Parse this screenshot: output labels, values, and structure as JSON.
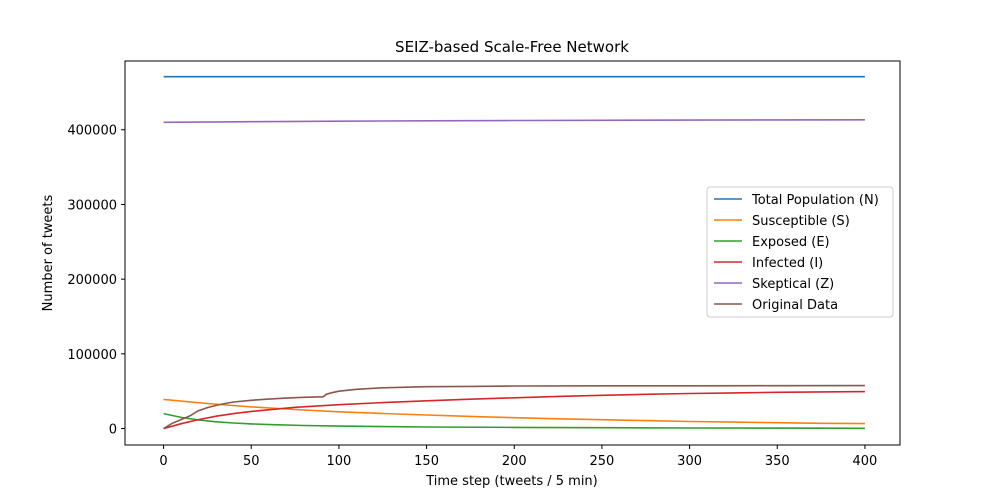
{
  "chart_data": {
    "type": "line",
    "title": "SEIZ-based Scale-Free Network",
    "xlabel": "Time step (tweets / 5 min)",
    "ylabel": "Number of tweets",
    "xlim": [
      -22,
      420
    ],
    "ylim": [
      -22000,
      492000
    ],
    "xticks": [
      0,
      50,
      100,
      150,
      200,
      250,
      300,
      350,
      400
    ],
    "xtick_labels": [
      "0",
      "50",
      "100",
      "150",
      "200",
      "250",
      "300",
      "350",
      "400"
    ],
    "yticks": [
      0,
      100000,
      200000,
      300000,
      400000
    ],
    "ytick_labels": [
      "0",
      "100000",
      "200000",
      "300000",
      "400000"
    ],
    "grid": false,
    "legend_position": "center-right",
    "series": [
      {
        "name": "Total Population (N)",
        "color": "#1f77b4",
        "x": [
          0,
          400
        ],
        "y": [
          471000,
          471000
        ]
      },
      {
        "name": "Susceptible (S)",
        "color": "#ff7f0e",
        "x": [
          0,
          25,
          50,
          75,
          100,
          125,
          150,
          175,
          200,
          225,
          250,
          275,
          300,
          325,
          350,
          375,
          400
        ],
        "y": [
          39000,
          33500,
          29000,
          25500,
          22500,
          20200,
          18200,
          16300,
          14600,
          13100,
          11800,
          10600,
          9500,
          8600,
          7800,
          7100,
          6600
        ]
      },
      {
        "name": "Exposed (E)",
        "color": "#2ca02c",
        "x": [
          0,
          10,
          20,
          30,
          40,
          50,
          60,
          80,
          100,
          125,
          150,
          200,
          250,
          300,
          350,
          400
        ],
        "y": [
          20000,
          15000,
          11500,
          9000,
          7400,
          6200,
          5300,
          4100,
          3300,
          2600,
          2100,
          1500,
          1100,
          800,
          600,
          400
        ]
      },
      {
        "name": "Infected (I)",
        "color": "#d62728",
        "x": [
          0,
          10,
          20,
          30,
          40,
          50,
          75,
          100,
          125,
          150,
          175,
          200,
          225,
          250,
          275,
          300,
          325,
          350,
          375,
          400
        ],
        "y": [
          0,
          6500,
          12000,
          16500,
          20000,
          23000,
          28500,
          32000,
          34800,
          37200,
          39300,
          41200,
          43000,
          44500,
          45800,
          46900,
          47800,
          48500,
          49100,
          49500
        ]
      },
      {
        "name": "Skeptical (Z)",
        "color": "#9467bd",
        "x": [
          0,
          50,
          100,
          150,
          200,
          250,
          300,
          350,
          400
        ],
        "y": [
          410000,
          410800,
          411400,
          411900,
          412300,
          412600,
          412900,
          413100,
          413300
        ]
      },
      {
        "name": "Original Data",
        "color": "#8c564b",
        "x": [
          0,
          5,
          10,
          15,
          20,
          25,
          30,
          35,
          40,
          50,
          60,
          70,
          80,
          91,
          93,
          96,
          100,
          110,
          125,
          150,
          175,
          200,
          250,
          300,
          350,
          400
        ],
        "y": [
          0,
          7000,
          12000,
          17000,
          24000,
          28000,
          31000,
          33500,
          35500,
          37800,
          39500,
          40800,
          41800,
          42500,
          46000,
          48000,
          50000,
          52500,
          54500,
          56000,
          56500,
          57000,
          57200,
          57300,
          57400,
          57500
        ]
      }
    ]
  }
}
